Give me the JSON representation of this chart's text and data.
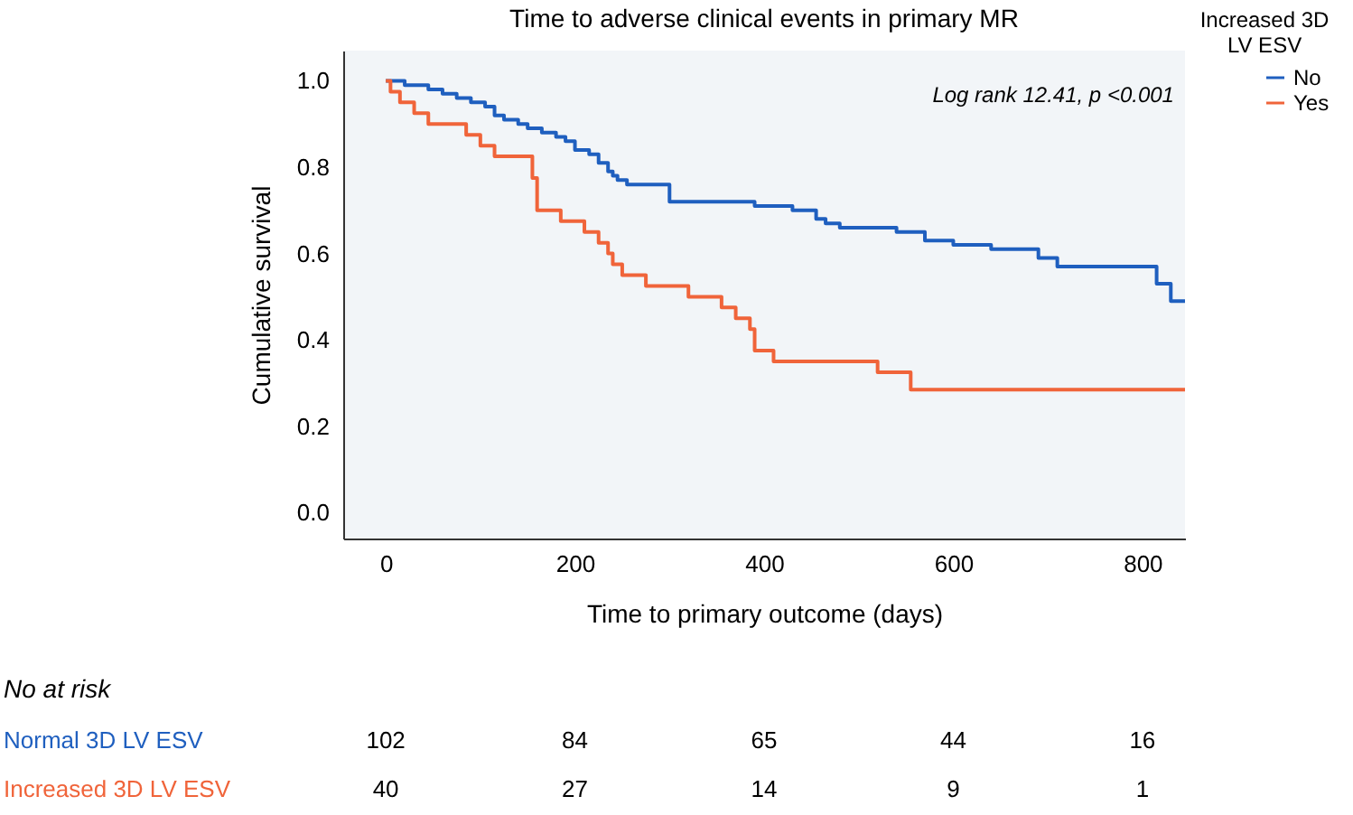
{
  "chart_data": {
    "type": "step",
    "title": "Time to adverse clinical events in primary MR",
    "xlabel": "Time to primary outcome (days)",
    "ylabel": "Cumulative survival",
    "legend_title": "Increased 3D LV ESV",
    "legend": "top right",
    "grid": false,
    "line_style": "solid",
    "marker": "none",
    "xlim": [
      -45,
      845
    ],
    "xticks": [
      0,
      200,
      400,
      600,
      800
    ],
    "ylim": [
      -0.06,
      1.07
    ],
    "yticks": [
      {
        "value": 0,
        "label": "0.0"
      },
      0.2,
      0.4,
      0.6,
      0.8,
      {
        "value": 1,
        "label": "1.0"
      }
    ],
    "series": [
      {
        "name": "No",
        "color": "#1f5fbf",
        "x": [
          0,
          20,
          45,
          60,
          75,
          90,
          105,
          115,
          125,
          140,
          150,
          165,
          180,
          190,
          200,
          215,
          225,
          235,
          240,
          245,
          255,
          300,
          390,
          430,
          455,
          465,
          480,
          540,
          570,
          600,
          640,
          690,
          710,
          815,
          830,
          845
        ],
        "values": [
          1.0,
          0.99,
          0.98,
          0.97,
          0.96,
          0.95,
          0.94,
          0.92,
          0.91,
          0.9,
          0.89,
          0.88,
          0.87,
          0.86,
          0.84,
          0.83,
          0.81,
          0.79,
          0.78,
          0.77,
          0.76,
          0.72,
          0.71,
          0.7,
          0.68,
          0.67,
          0.66,
          0.65,
          0.63,
          0.62,
          0.61,
          0.59,
          0.57,
          0.53,
          0.49,
          0.49
        ]
      },
      {
        "name": "Yes",
        "color": "#f0643a",
        "x": [
          0,
          5,
          15,
          30,
          45,
          85,
          100,
          115,
          155,
          160,
          185,
          210,
          225,
          235,
          240,
          250,
          275,
          320,
          355,
          370,
          385,
          390,
          410,
          520,
          555,
          845
        ],
        "values": [
          1.0,
          0.975,
          0.95,
          0.925,
          0.9,
          0.875,
          0.85,
          0.825,
          0.775,
          0.7,
          0.675,
          0.65,
          0.625,
          0.6,
          0.575,
          0.55,
          0.525,
          0.5,
          0.475,
          0.45,
          0.425,
          0.375,
          0.35,
          0.325,
          0.285,
          0.285
        ]
      }
    ],
    "annotations": [
      "Log rank 12.41, p <0.001",
      "No at risk",
      "Normal 3D LV ESV",
      "102",
      "84",
      "65",
      "44",
      "16",
      "Increased 3D LV ESV",
      "40",
      "27",
      "14",
      "9",
      "1"
    ]
  }
}
